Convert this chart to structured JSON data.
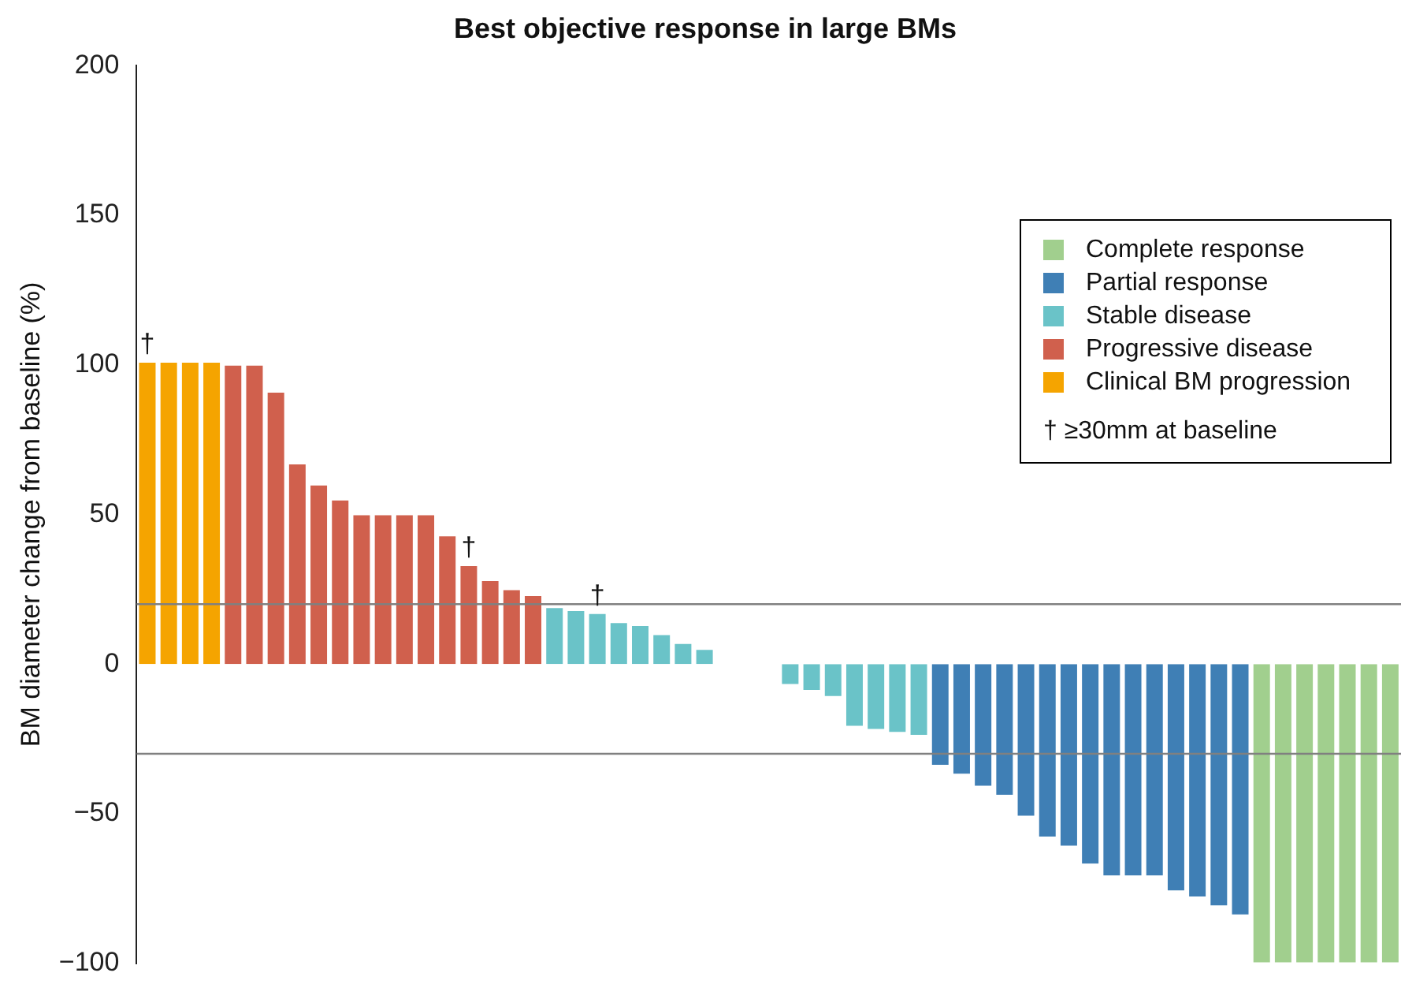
{
  "chart_data": {
    "type": "bar",
    "title": "Best objective response in large BMs",
    "ylabel": "BM diameter change from baseline (%)",
    "categories": [
      null,
      null,
      null,
      null,
      null,
      null,
      null,
      null,
      null,
      null,
      null,
      null,
      null,
      null,
      null,
      null,
      null,
      null,
      null,
      null,
      null,
      null,
      null,
      null,
      null,
      null,
      null,
      null,
      null,
      null,
      null,
      null,
      null,
      null,
      null,
      null,
      null,
      null,
      null,
      null,
      null,
      null,
      null,
      null,
      null,
      null,
      null,
      null,
      null,
      null,
      null,
      null,
      null,
      null,
      null,
      null,
      null,
      null,
      null
    ],
    "series": [
      {
        "name": "Complete response",
        "color": "#a1cf8e",
        "values": [
          null,
          null,
          null,
          null,
          null,
          null,
          null,
          null,
          null,
          null,
          null,
          null,
          null,
          null,
          null,
          null,
          null,
          null,
          null,
          null,
          null,
          null,
          null,
          null,
          null,
          null,
          null,
          null,
          null,
          null,
          null,
          null,
          null,
          null,
          null,
          null,
          null,
          null,
          null,
          null,
          null,
          null,
          null,
          null,
          null,
          null,
          null,
          null,
          null,
          null,
          null,
          null,
          -100,
          -100,
          -100,
          -100,
          -100,
          -100,
          -100
        ]
      },
      {
        "name": "Partial response",
        "color": "#3f7fb5",
        "values": [
          null,
          null,
          null,
          null,
          null,
          null,
          null,
          null,
          null,
          null,
          null,
          null,
          null,
          null,
          null,
          null,
          null,
          null,
          null,
          null,
          null,
          null,
          null,
          null,
          null,
          null,
          null,
          null,
          null,
          null,
          null,
          null,
          null,
          null,
          null,
          null,
          null,
          -34,
          -37,
          -41,
          -44,
          -51,
          -58,
          -61,
          -67,
          -71,
          -71,
          -71,
          -76,
          -78,
          -81,
          -84,
          null,
          null,
          null,
          null,
          null,
          null,
          null
        ]
      },
      {
        "name": "Stable disease",
        "color": "#6ac3c8",
        "values": [
          null,
          null,
          null,
          null,
          null,
          null,
          null,
          null,
          null,
          null,
          null,
          null,
          null,
          null,
          null,
          null,
          null,
          null,
          null,
          19,
          18,
          17,
          14,
          13,
          10,
          7,
          5,
          0,
          0,
          0,
          -7,
          -9,
          -11,
          -21,
          -22,
          -23,
          -24,
          null,
          null,
          null,
          null,
          null,
          null,
          null,
          null,
          null,
          null,
          null,
          null,
          null,
          null,
          null,
          null,
          null,
          null,
          null,
          null,
          null,
          null
        ]
      },
      {
        "name": "Progressive disease",
        "color": "#d0604d",
        "values": [
          null,
          null,
          null,
          null,
          100,
          100,
          91,
          67,
          60,
          55,
          50,
          50,
          50,
          50,
          43,
          33,
          28,
          25,
          23,
          null,
          null,
          null,
          null,
          null,
          null,
          null,
          null,
          null,
          null,
          null,
          null,
          null,
          null,
          null,
          null,
          null,
          null,
          null,
          null,
          null,
          null,
          null,
          null,
          null,
          null,
          null,
          null,
          null,
          null,
          null,
          null,
          null,
          null,
          null,
          null,
          null,
          null,
          null,
          null
        ]
      },
      {
        "name": "Clinical BM progression",
        "color": "#f5a400",
        "values": [
          101,
          101,
          101,
          101,
          null,
          null,
          null,
          null,
          null,
          null,
          null,
          null,
          null,
          null,
          null,
          null,
          null,
          null,
          null,
          null,
          null,
          null,
          null,
          null,
          null,
          null,
          null,
          null,
          null,
          null,
          null,
          null,
          null,
          null,
          null,
          null,
          null,
          null,
          null,
          null,
          null,
          null,
          null,
          null,
          null,
          null,
          null,
          null,
          null,
          null,
          null,
          null,
          null,
          null,
          null,
          null,
          null,
          null,
          null
        ]
      }
    ],
    "ylim": [
      -100,
      200
    ],
    "yticks": [
      -100,
      -50,
      0,
      50,
      100,
      150,
      200
    ],
    "grid": false,
    "legend": "top right",
    "ref_lines": [
      {
        "axis": "y",
        "value": 20,
        "color": "#808080"
      },
      {
        "axis": "y",
        "value": -30,
        "color": "#808080"
      }
    ],
    "annotations": [
      {
        "text": "†",
        "y": 101
      },
      {
        "text": "†",
        "y": 33
      },
      {
        "text": "†",
        "y": 17
      },
      "†  ≥30mm at baseline"
    ]
  }
}
